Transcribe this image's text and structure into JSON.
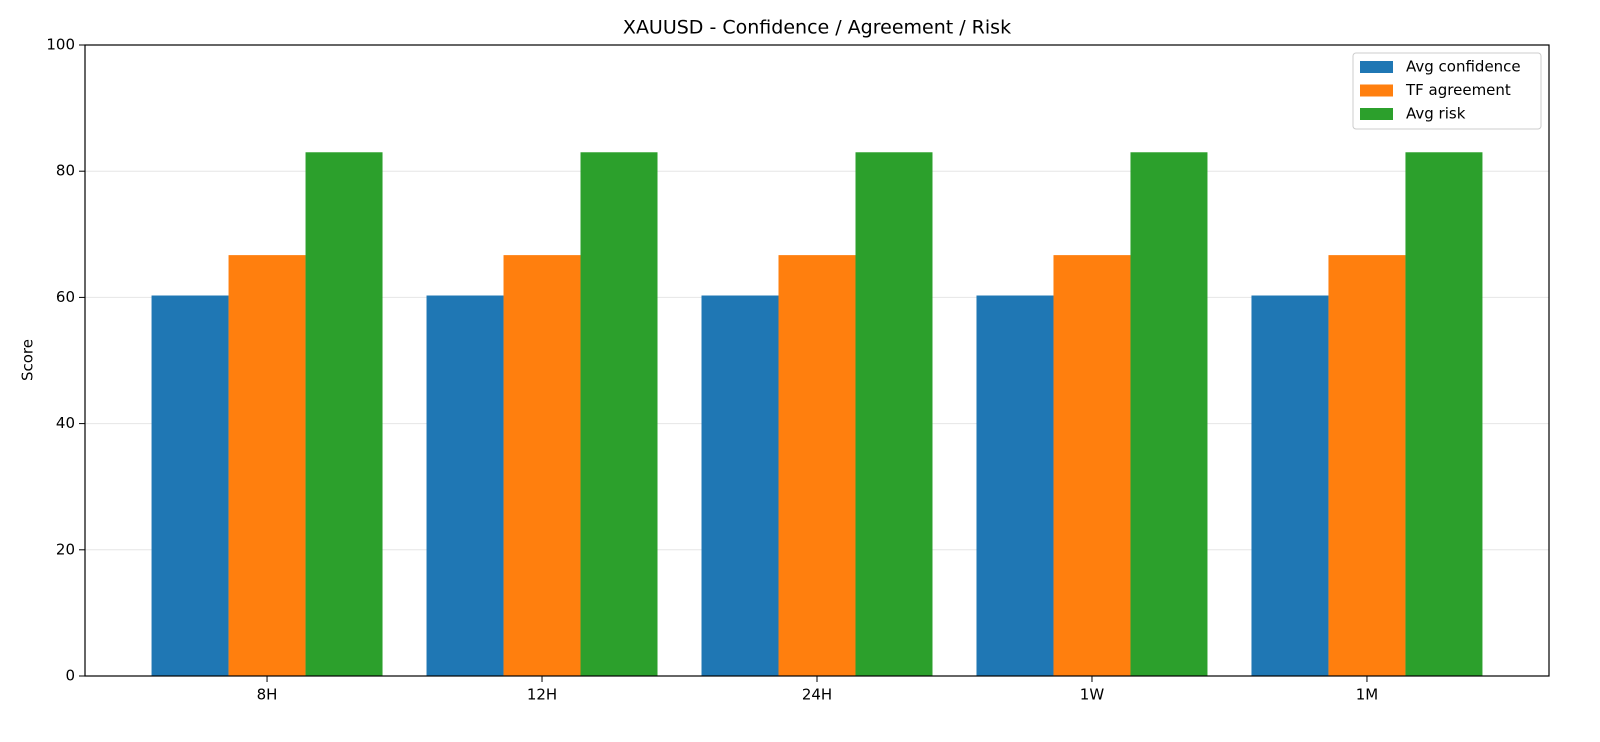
{
  "chart_data": {
    "type": "bar",
    "title": "XAUUSD - Confidence / Agreement / Risk",
    "ylabel": "Score",
    "categories": [
      "8H",
      "12H",
      "24H",
      "1W",
      "1M"
    ],
    "series": [
      {
        "name": "Avg confidence",
        "color": "#1f77b4",
        "values": [
          60.3,
          60.3,
          60.3,
          60.3,
          60.3
        ]
      },
      {
        "name": "TF agreement",
        "color": "#ff7f0e",
        "values": [
          66.7,
          66.7,
          66.7,
          66.7,
          66.7
        ]
      },
      {
        "name": "Avg risk",
        "color": "#2ca02c",
        "values": [
          83,
          83,
          83,
          83,
          83
        ]
      }
    ],
    "ylim": [
      0,
      100
    ],
    "yticks": [
      0,
      20,
      40,
      60,
      80,
      100
    ],
    "grid": true,
    "legend": "upper right"
  }
}
